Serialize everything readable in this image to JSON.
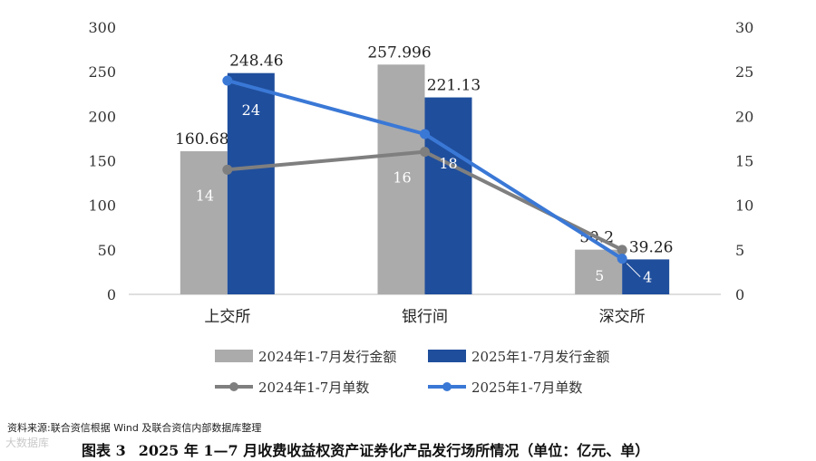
{
  "chart_data": {
    "type": "bar",
    "categories": [
      "上交所",
      "银行间",
      "深交所"
    ],
    "y_left": {
      "min": 0,
      "max": 300,
      "step": 50
    },
    "y_right": {
      "min": 0,
      "max": 30,
      "step": 5
    },
    "bar_series": [
      {
        "name": "2024年1-7月发行金额",
        "values": [
          160.68,
          257.996,
          50.2
        ],
        "labels": [
          "160.68",
          "257.996",
          "50.2"
        ],
        "color": "#ababab"
      },
      {
        "name": "2025年1-7月发行金额",
        "values": [
          248.46,
          221.13,
          39.26
        ],
        "labels": [
          "248.46",
          "221.13",
          "39.26"
        ],
        "color": "#1f4e9c"
      }
    ],
    "line_series": [
      {
        "name": "2024年1-7月单数",
        "values": [
          14,
          16,
          5
        ],
        "labels": [
          "14",
          "16",
          "5"
        ],
        "color": "#7f7f7f"
      },
      {
        "name": "2025年1-7月单数",
        "values": [
          24,
          18,
          4
        ],
        "labels": [
          "24",
          "18",
          "4"
        ],
        "color": "#3a78d6"
      }
    ],
    "grid": false,
    "legend_position": "bottom"
  },
  "source_text": "资料来源:联合资信根据 Wind 及联合资信内部数据库整理",
  "caption": {
    "label": "图表 3",
    "title": "2025 年 1—7 月收费收益权资产证券化产品发行场所情况（单位：亿元、单）"
  },
  "watermark": "大数据库"
}
